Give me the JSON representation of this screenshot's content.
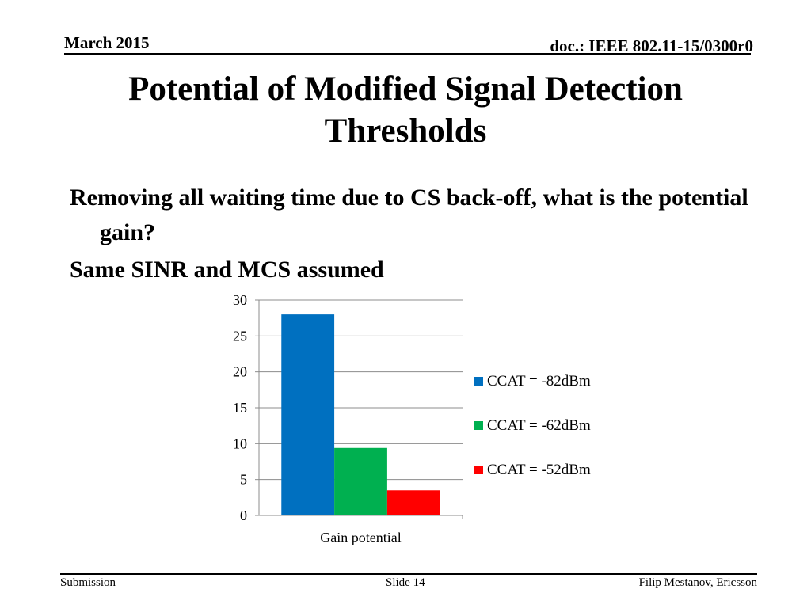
{
  "header": {
    "date": "March 2015",
    "doc": "doc.: IEEE 802.11-15/0300r0"
  },
  "title": "Potential of Modified Signal Detection Thresholds",
  "bullets": [
    "Removing all waiting time due to CS back-off, what is the potential gain?",
    "Same SINR and MCS assumed"
  ],
  "chart_data": {
    "type": "bar",
    "title": "",
    "xlabel": "",
    "ylabel": "",
    "categories": [
      "Gain potential"
    ],
    "series": [
      {
        "name": "CCAT = -82dBm",
        "values": [
          28
        ],
        "color": "#0070C0"
      },
      {
        "name": "CCAT = -62dBm",
        "values": [
          9.4
        ],
        "color": "#00B050"
      },
      {
        "name": "CCAT = -52dBm",
        "values": [
          3.5
        ],
        "color": "#FF0000"
      }
    ],
    "ylim": [
      0,
      30
    ],
    "yticks": [
      0,
      5,
      10,
      15,
      20,
      25,
      30
    ],
    "grid": true,
    "legend_position": "right"
  },
  "footer": {
    "left": "Submission",
    "center": "Slide 14",
    "right": "Filip Mestanov, Ericsson"
  }
}
